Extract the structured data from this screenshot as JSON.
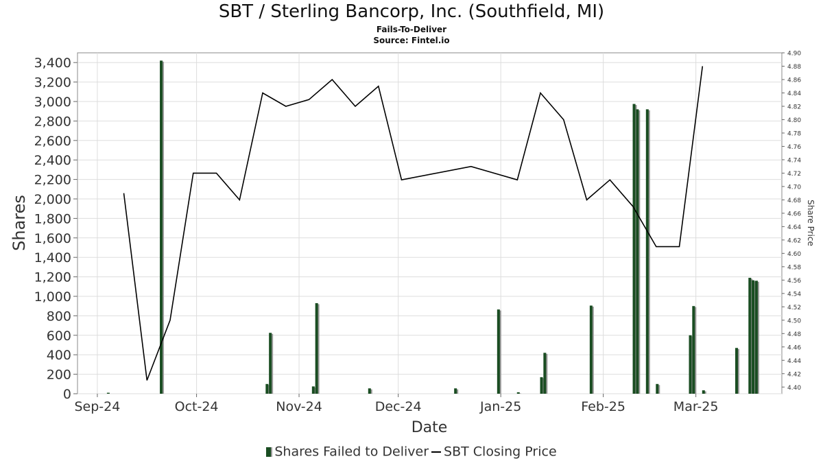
{
  "title": "SBT / Sterling Bancorp, Inc. (Southfield, MI)",
  "subtitle": "Fails-To-Deliver",
  "source": "Source: Fintel.io",
  "colors": {
    "bar": "#1a4d22",
    "bar_shadow": "#9a9a9a",
    "line": "#000000",
    "grid": "#dddddd"
  },
  "legend": {
    "bars": "Shares Failed to Deliver",
    "line": "SBT Closing Price"
  },
  "chart_data": {
    "type": "bar",
    "title": "SBT / Sterling Bancorp, Inc. (Southfield, MI)",
    "xlabel": "Date",
    "ylabel": "Shares",
    "y2label": "Share Price",
    "ylim": [
      0,
      3500
    ],
    "y2lim": [
      4.39,
      4.9
    ],
    "yticks": [
      0,
      200,
      400,
      600,
      800,
      1000,
      1200,
      1400,
      1600,
      1800,
      2000,
      2200,
      2400,
      2600,
      2800,
      3000,
      3200,
      3400
    ],
    "y2ticks": [
      4.4,
      4.42,
      4.44,
      4.46,
      4.48,
      4.5,
      4.52,
      4.54,
      4.56,
      4.58,
      4.6,
      4.62,
      4.64,
      4.66,
      4.68,
      4.7,
      4.72,
      4.74,
      4.76,
      4.78,
      4.8,
      4.82,
      4.84,
      4.86,
      4.88,
      4.9
    ],
    "xlim": [
      "2024-08-26",
      "2025-03-27"
    ],
    "xticks": [
      {
        "label": "Sep-24",
        "date": "2024-09-01"
      },
      {
        "label": "Oct-24",
        "date": "2024-10-01"
      },
      {
        "label": "Nov-24",
        "date": "2024-11-01"
      },
      {
        "label": "Dec-24",
        "date": "2024-12-01"
      },
      {
        "label": "Jan-25",
        "date": "2025-01-01"
      },
      {
        "label": "Feb-25",
        "date": "2025-02-01"
      },
      {
        "label": "Mar-25",
        "date": "2025-03-01"
      }
    ],
    "grid": true,
    "legend_position": "bottom",
    "series": [
      {
        "name": "Shares Failed to Deliver",
        "type": "bar",
        "axis": "left",
        "points": [
          {
            "x": "2024-09-04",
            "y": 10
          },
          {
            "x": "2024-09-20",
            "y": 3420
          },
          {
            "x": "2024-10-22",
            "y": 100
          },
          {
            "x": "2024-10-23",
            "y": 625
          },
          {
            "x": "2024-11-05",
            "y": 75
          },
          {
            "x": "2024-11-06",
            "y": 930
          },
          {
            "x": "2024-11-22",
            "y": 55
          },
          {
            "x": "2024-12-18",
            "y": 55
          },
          {
            "x": "2024-12-31",
            "y": 865
          },
          {
            "x": "2025-01-06",
            "y": 15
          },
          {
            "x": "2025-01-13",
            "y": 170
          },
          {
            "x": "2025-01-14",
            "y": 420
          },
          {
            "x": "2025-01-28",
            "y": 905
          },
          {
            "x": "2025-02-10",
            "y": 2975
          },
          {
            "x": "2025-02-11",
            "y": 2920
          },
          {
            "x": "2025-02-14",
            "y": 2920
          },
          {
            "x": "2025-02-17",
            "y": 100
          },
          {
            "x": "2025-02-27",
            "y": 600
          },
          {
            "x": "2025-02-28",
            "y": 900
          },
          {
            "x": "2025-03-03",
            "y": 35
          },
          {
            "x": "2025-03-13",
            "y": 470
          },
          {
            "x": "2025-03-17",
            "y": 1190
          },
          {
            "x": "2025-03-18",
            "y": 1165
          },
          {
            "x": "2025-03-19",
            "y": 1160
          }
        ]
      },
      {
        "name": "SBT Closing Price",
        "type": "line",
        "axis": "right",
        "points": [
          {
            "x": "2024-09-09",
            "y": 4.69
          },
          {
            "x": "2024-09-16",
            "y": 4.41
          },
          {
            "x": "2024-09-23",
            "y": 4.5
          },
          {
            "x": "2024-09-30",
            "y": 4.72
          },
          {
            "x": "2024-10-07",
            "y": 4.72
          },
          {
            "x": "2024-10-14",
            "y": 4.68
          },
          {
            "x": "2024-10-21",
            "y": 4.84
          },
          {
            "x": "2024-10-28",
            "y": 4.82
          },
          {
            "x": "2024-11-04",
            "y": 4.83
          },
          {
            "x": "2024-11-11",
            "y": 4.86
          },
          {
            "x": "2024-11-18",
            "y": 4.82
          },
          {
            "x": "2024-11-25",
            "y": 4.85
          },
          {
            "x": "2024-12-02",
            "y": 4.71
          },
          {
            "x": "2024-12-23",
            "y": 4.73
          },
          {
            "x": "2025-01-06",
            "y": 4.71
          },
          {
            "x": "2025-01-13",
            "y": 4.84
          },
          {
            "x": "2025-01-20",
            "y": 4.8
          },
          {
            "x": "2025-01-27",
            "y": 4.68
          },
          {
            "x": "2025-02-03",
            "y": 4.71
          },
          {
            "x": "2025-02-10",
            "y": 4.67
          },
          {
            "x": "2025-02-17",
            "y": 4.61
          },
          {
            "x": "2025-02-24",
            "y": 4.61
          },
          {
            "x": "2025-03-03",
            "y": 4.88
          }
        ]
      }
    ]
  }
}
